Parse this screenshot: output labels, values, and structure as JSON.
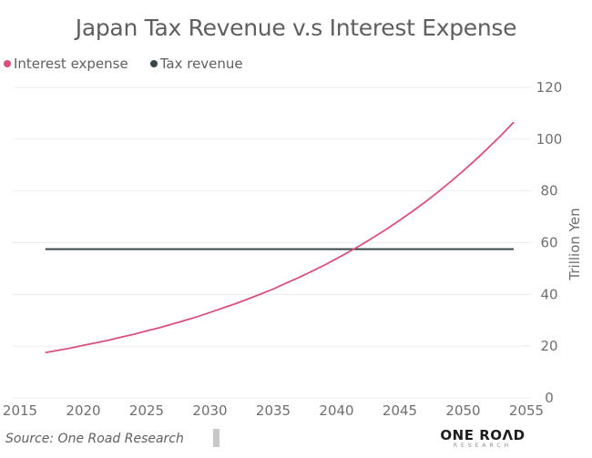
{
  "chart_data": {
    "type": "line",
    "title": "Japan Tax Revenue v.s Interest Expense",
    "xlabel": "",
    "ylabel": "Trillion Yen",
    "xlim": [
      2015,
      2055
    ],
    "ylim": [
      0,
      120
    ],
    "x_ticks": [
      "2015",
      "2020",
      "2025",
      "2030",
      "2035",
      "2040",
      "2045",
      "2050",
      "2055"
    ],
    "y_ticks": [
      "0",
      "20",
      "40",
      "60",
      "80",
      "100",
      "120"
    ],
    "y_axis_side": "right",
    "grid": true,
    "legend_position": "top-left",
    "series": [
      {
        "name": "Interest expense",
        "color": "#d9517b",
        "x": [
          2017,
          2018,
          2019,
          2020,
          2021,
          2022,
          2023,
          2024,
          2025,
          2026,
          2027,
          2028,
          2029,
          2030,
          2031,
          2032,
          2033,
          2034,
          2035,
          2036,
          2037,
          2038,
          2039,
          2040,
          2041,
          2042,
          2043,
          2044,
          2045,
          2046,
          2047,
          2048,
          2049,
          2050,
          2051,
          2052,
          2053,
          2054
        ],
        "values": [
          17.5,
          18.4,
          19.3,
          20.3,
          21.3,
          22.3,
          23.5,
          24.6,
          25.9,
          27.1,
          28.5,
          29.9,
          31.4,
          33.0,
          34.7,
          36.4,
          38.2,
          40.1,
          42.1,
          44.3,
          46.5,
          48.8,
          51.2,
          53.8,
          56.5,
          59.3,
          62.3,
          65.4,
          68.7,
          72.1,
          75.7,
          79.5,
          83.5,
          87.7,
          92.1,
          96.7,
          101.5,
          106.6
        ]
      },
      {
        "name": "Tax revenue",
        "color": "#374649",
        "x": [
          2017,
          2054
        ],
        "values": [
          57.5,
          57.5
        ]
      }
    ]
  },
  "footer": {
    "source": "Source: One Road Research",
    "logo_main": "ONE ROΛD",
    "logo_sub": "RESEARCH"
  }
}
